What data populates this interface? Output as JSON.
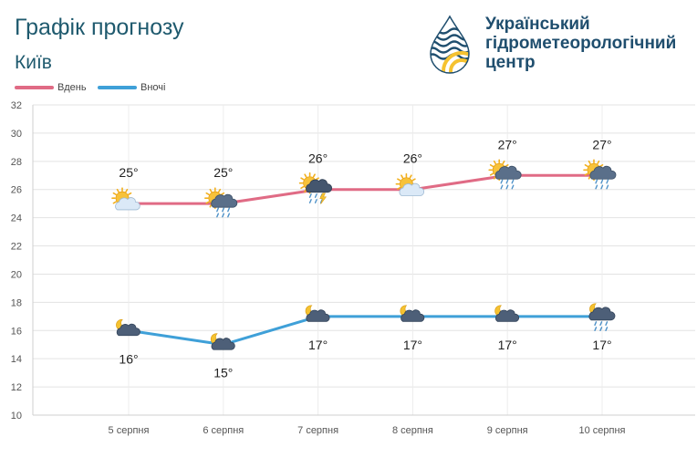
{
  "header": {
    "title": "Графік прогнозу",
    "city": "Київ",
    "organization_lines": [
      "Український",
      "гідрометеорологічний",
      "центр"
    ]
  },
  "colors": {
    "day_line": "#e06b85",
    "night_line": "#3fa0d8",
    "title_text": "#1f5a6e",
    "logo_blue": "#1f4e6e",
    "logo_yellow": "#f5c230",
    "grid": "#e3e3e3"
  },
  "chart_data": {
    "type": "line",
    "categories": [
      "5 серпня",
      "6 серпня",
      "7 серпня",
      "8 серпня",
      "9 серпня",
      "10 серпня"
    ],
    "series": [
      {
        "name": "Вдень",
        "values": [
          25,
          25,
          26,
          26,
          27,
          27
        ],
        "labels": [
          "25°",
          "25°",
          "26°",
          "26°",
          "27°",
          "27°"
        ],
        "icons": [
          "sun-cloud-icon",
          "sun-rain-icon",
          "sun-thunderstorm-icon",
          "sun-cloud-icon",
          "sun-rain-icon",
          "sun-rain-icon"
        ]
      },
      {
        "name": "Вночі",
        "values": [
          16,
          15,
          17,
          17,
          17,
          17
        ],
        "labels": [
          "16°",
          "15°",
          "17°",
          "17°",
          "17°",
          "17°"
        ],
        "icons": [
          "moon-cloud-icon",
          "moon-cloud-icon",
          "moon-cloud-icon",
          "moon-cloud-icon",
          "moon-cloud-icon",
          "moon-rain-icon"
        ]
      }
    ],
    "ylim": [
      10,
      32
    ],
    "yticks": [
      10,
      12,
      14,
      16,
      18,
      20,
      22,
      24,
      26,
      28,
      30,
      32
    ],
    "grid": true,
    "legend": "top-left"
  }
}
